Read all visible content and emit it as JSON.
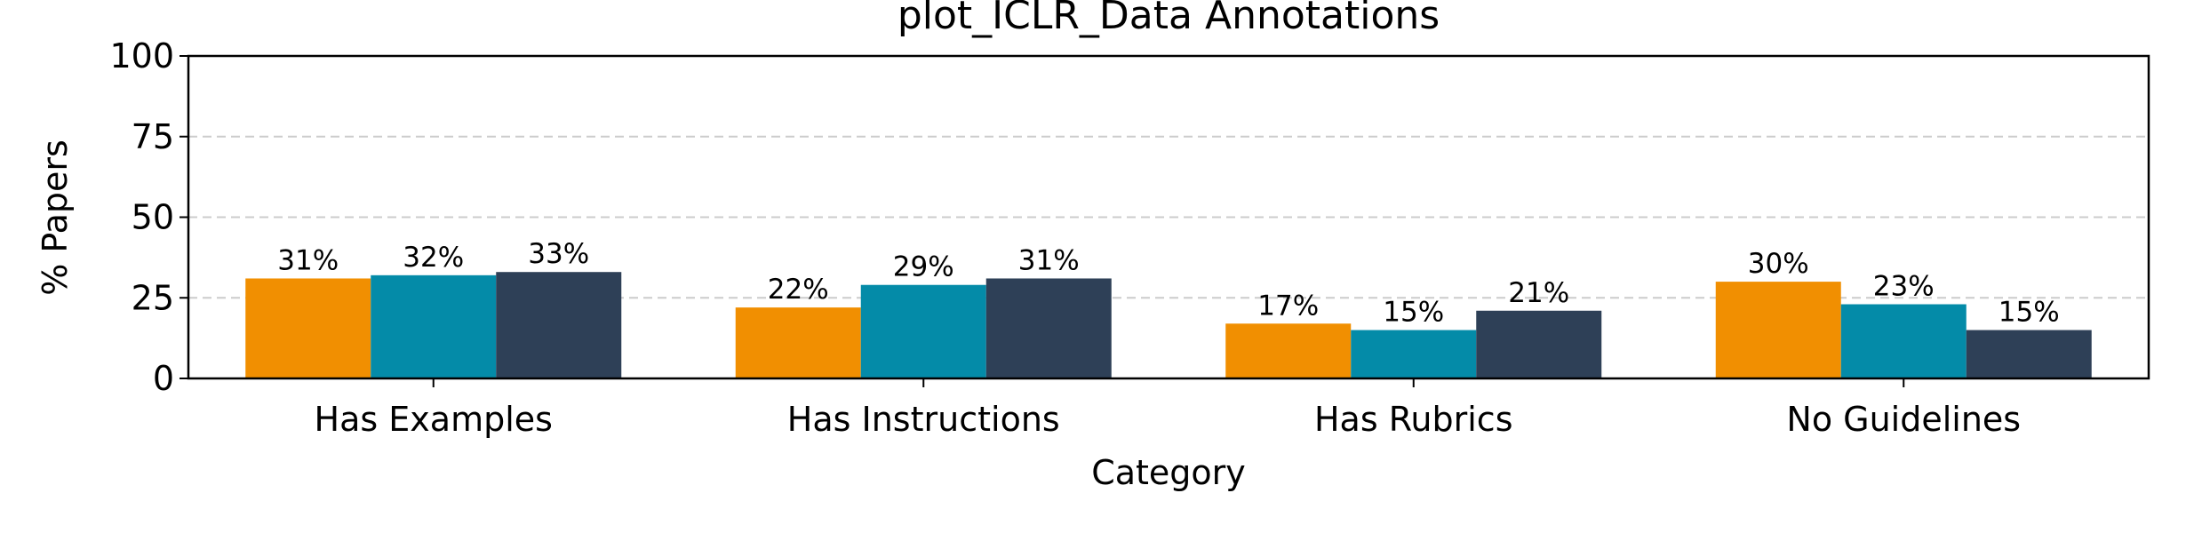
{
  "chart_data": {
    "type": "bar",
    "title": "plot_ICLR_Data Annotations",
    "xlabel": "Category",
    "ylabel": "% Papers",
    "ylim": [
      0,
      100
    ],
    "yticks": [
      0,
      25,
      50,
      75,
      100
    ],
    "grid": true,
    "categories": [
      "Has Examples",
      "Has Instructions",
      "Has Rubrics",
      "No Guidelines"
    ],
    "series": [
      {
        "values": [
          31,
          22,
          17,
          30
        ],
        "labels": [
          "31%",
          "22%",
          "17%",
          "30%"
        ],
        "color": "#F18F01"
      },
      {
        "values": [
          32,
          29,
          15,
          23
        ],
        "labels": [
          "32%",
          "29%",
          "15%",
          "23%"
        ],
        "color": "#048BA8"
      },
      {
        "values": [
          33,
          31,
          21,
          15
        ],
        "labels": [
          "33%",
          "31%",
          "21%",
          "15%"
        ],
        "color": "#2E4057"
      }
    ]
  }
}
